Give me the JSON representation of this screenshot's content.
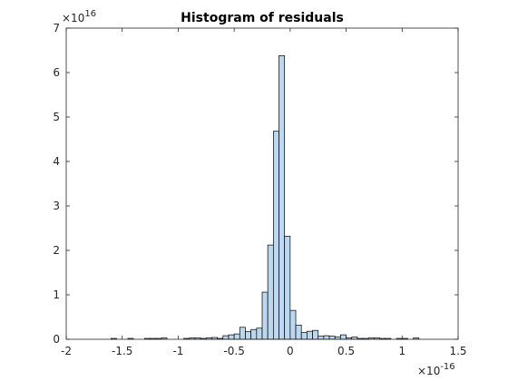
{
  "chart_data": {
    "type": "bar",
    "title": "Histogram of residuals",
    "xlabel": "",
    "ylabel": "",
    "xlim": [
      -2,
      1.5
    ],
    "ylim": [
      0,
      7
    ],
    "x_scale_label": {
      "base": "×10",
      "exponent": "-16"
    },
    "y_scale_label": {
      "base": "×10",
      "exponent": "16"
    },
    "x_ticks": [
      "-2",
      "-1.5",
      "-1",
      "-0.5",
      "0",
      "0.5",
      "1",
      "1.5"
    ],
    "y_ticks": [
      "0",
      "1",
      "2",
      "3",
      "4",
      "5",
      "6",
      "7"
    ],
    "bin_width": 0.05,
    "bin_start": -1.6,
    "bin_counts": [
      0.02,
      0,
      0,
      0.02,
      0,
      0,
      0.02,
      0.02,
      0.02,
      0.03,
      0,
      0,
      0,
      0.02,
      0.03,
      0.03,
      0.02,
      0.03,
      0.04,
      0.02,
      0.08,
      0.1,
      0.12,
      0.27,
      0.17,
      0.22,
      0.25,
      1.06,
      2.12,
      4.68,
      6.38,
      2.32,
      0.65,
      0.32,
      0.15,
      0.18,
      0.2,
      0.07,
      0.08,
      0.07,
      0.05,
      0.1,
      0.03,
      0.05,
      0.02,
      0.02,
      0.03,
      0.03,
      0.02,
      0.02,
      0,
      0.02,
      0.02,
      0,
      0.03
    ],
    "grid": false,
    "bar_color": "#bdd7ee",
    "edge_color": "#000000"
  }
}
